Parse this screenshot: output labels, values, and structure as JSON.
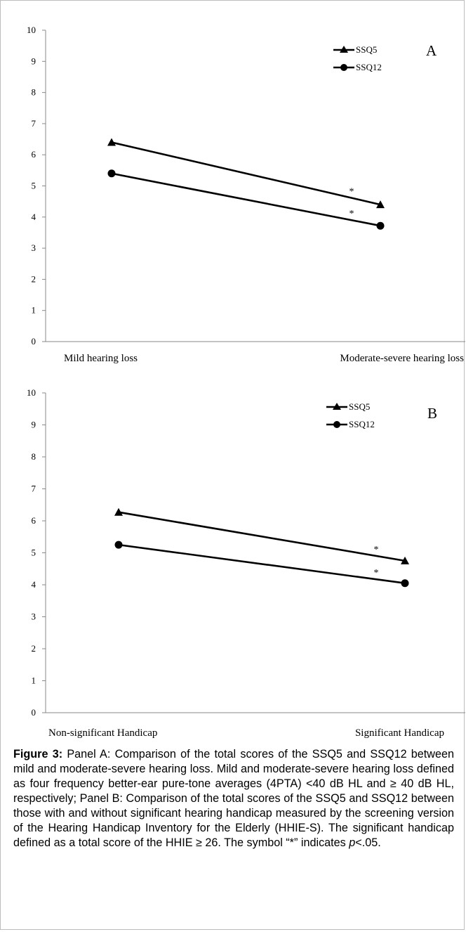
{
  "chart_data": [
    {
      "type": "line",
      "panel_label": "A",
      "categories": [
        "Mild hearing loss",
        "Moderate-severe hearing loss"
      ],
      "series": [
        {
          "name": "SSQ5",
          "marker": "triangle",
          "values": [
            6.4,
            4.4
          ]
        },
        {
          "name": "SSQ12",
          "marker": "circle",
          "values": [
            5.4,
            3.72
          ]
        }
      ],
      "yticks": [
        "0",
        "1",
        "2",
        "3",
        "4",
        "5",
        "6",
        "7",
        "8",
        "9",
        "10"
      ],
      "ylim": [
        0,
        10
      ],
      "significance_marker": "*",
      "significance_at": "Moderate-severe hearing loss",
      "legend_position": "top-right",
      "grid": false
    },
    {
      "type": "line",
      "panel_label": "B",
      "categories": [
        "Non-significant Handicap",
        "Significant Handicap"
      ],
      "series": [
        {
          "name": "SSQ5",
          "marker": "triangle",
          "values": [
            6.27,
            4.75
          ]
        },
        {
          "name": "SSQ12",
          "marker": "circle",
          "values": [
            5.25,
            4.05
          ]
        }
      ],
      "yticks": [
        "0",
        "1",
        "2",
        "3",
        "4",
        "5",
        "6",
        "7",
        "8",
        "9",
        "10"
      ],
      "ylim": [
        0,
        10
      ],
      "significance_marker": "*",
      "significance_at": "Significant Handicap",
      "legend_position": "top-right",
      "grid": false
    }
  ],
  "caption": {
    "label": "Figure 3:",
    "text_1": " Panel A: Comparison of the total scores of the SSQ5 and SSQ12 between mild and moderate-severe hearing loss. Mild and moderate-severe hearing loss defined as four frequency better-ear pure-tone averages (4PTA) <40 dB HL and ≥ 40 dB HL, respectively; Panel B: Comparison of the total scores of the SSQ5 and SSQ12 between those with and without significant hearing handicap measured by the screening version of the Hearing Handicap Inventory for the Elderly (HHIE-S). The significant handicap defined as a total score of the HHIE ≥ 26. The symbol “*” indicates ",
    "p_symbol": "p",
    "text_2": "<.05."
  }
}
